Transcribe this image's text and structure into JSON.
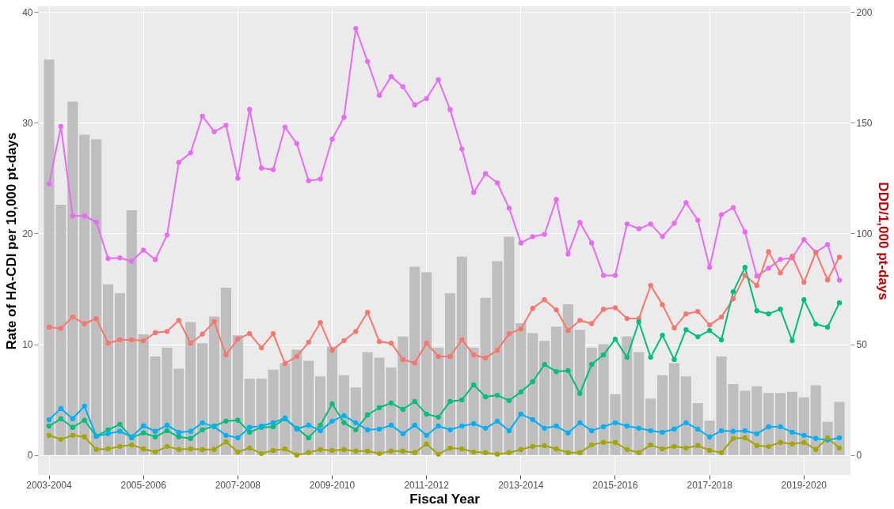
{
  "chart_data": {
    "type": "bar",
    "xlabel": "Fiscal Year",
    "ylabel": "Rate of HA-CDI per 10,000 pt-days",
    "y2label": "DDD/1,000 pt-days",
    "categories": [
      "2003-2004",
      null,
      null,
      null,
      null,
      null,
      null,
      null,
      "2005-2006",
      null,
      null,
      null,
      null,
      null,
      null,
      null,
      "2007-2008",
      null,
      null,
      null,
      null,
      null,
      null,
      null,
      "2009-2010",
      null,
      null,
      null,
      null,
      null,
      null,
      null,
      "2011-2012",
      null,
      null,
      null,
      null,
      null,
      null,
      null,
      "2013-2014",
      null,
      null,
      null,
      null,
      null,
      null,
      null,
      "2015-2016",
      null,
      null,
      null,
      null,
      null,
      null,
      null,
      "2017-2018",
      null,
      null,
      null,
      null,
      null,
      null,
      null,
      "2019-2020",
      null,
      null,
      null
    ],
    "ylim": [
      -1.8,
      40.5
    ],
    "yticks": [
      0,
      10,
      20,
      30,
      40
    ],
    "y2lim": [
      -9,
      202.5
    ],
    "y2ticks": [
      0,
      50,
      100,
      150,
      200
    ],
    "grid": true,
    "series": [
      {
        "color": "#bebebe",
        "values": [
          35.7,
          22.6,
          31.9,
          28.9,
          28.5,
          15.4,
          14.6,
          22.1,
          10.9,
          8.9,
          9.7,
          7.8,
          12.0,
          10.1,
          12.5,
          15.1,
          10.8,
          6.9,
          6.9,
          7.7,
          8.3,
          9.5,
          8.5,
          7.1,
          9.8,
          7.2,
          6.1,
          9.3,
          8.8,
          7.9,
          10.7,
          17.0,
          16.5,
          9.7,
          14.6,
          17.9,
          9.7,
          14.2,
          17.5,
          19.7,
          11.9,
          11.0,
          10.3,
          11.6,
          13.6,
          11.3,
          9.7,
          10.0,
          5.5,
          10.7,
          9.3,
          5.1,
          7.2,
          8.3,
          7.1,
          4.7,
          3.1,
          8.9,
          6.4,
          5.8,
          6.2,
          5.6,
          5.6,
          5.7,
          5.2,
          6.3,
          3.0,
          4.8
        ]
      },
      {
        "type": "line",
        "axis": "y2",
        "color": "#e76bf3",
        "marker": "circle",
        "line_style": "solid",
        "values": [
          122.4,
          148.3,
          107.9,
          107.9,
          105.2,
          88.7,
          89.0,
          87.5,
          92.5,
          88.2,
          99.3,
          132.1,
          136.4,
          153.0,
          145.9,
          148.8,
          124.9,
          156.0,
          129.5,
          128.8,
          148.0,
          140.6,
          123.8,
          124.6,
          142.6,
          152.4,
          192.5,
          177.6,
          162.3,
          170.8,
          166.2,
          158.0,
          160.9,
          169.4,
          155.9,
          138.1,
          118.5,
          127.0,
          122.8,
          111.4,
          95.7,
          98.6,
          99.6,
          115.3,
          90.7,
          105.0,
          95.7,
          81.1,
          81.1,
          104.3,
          102.1,
          104.3,
          98.6,
          104.6,
          113.9,
          106.0,
          84.7,
          108.5,
          111.7,
          100.7,
          80.8,
          84.3,
          88.3,
          89.0,
          97.2,
          91.5,
          95.0,
          78.9
        ]
      },
      {
        "type": "line",
        "axis": "y2",
        "color": "#f8766d",
        "marker": "circle",
        "line_style": "solid",
        "values": [
          57.7,
          57.2,
          62.3,
          59.3,
          61.6,
          50.5,
          52.0,
          52.0,
          51.6,
          55.2,
          55.8,
          60.8,
          50.5,
          54.6,
          60.2,
          45.2,
          52.4,
          54.8,
          48.4,
          54.8,
          41.3,
          44.5,
          50.9,
          59.8,
          47.3,
          51.6,
          55.8,
          64.4,
          51.2,
          50.5,
          43.1,
          41.6,
          50.5,
          44.5,
          44.5,
          52.0,
          45.2,
          43.8,
          47.3,
          54.8,
          56.9,
          66.2,
          70.1,
          65.5,
          56.2,
          60.8,
          59.3,
          65.8,
          66.5,
          61.6,
          61.6,
          76.5,
          67.9,
          57.3,
          63.7,
          64.8,
          58.7,
          62.3,
          70.5,
          81.1,
          76.5,
          91.8,
          82.2,
          89.7,
          77.9,
          91.5,
          79.0,
          89.3
        ]
      },
      {
        "type": "line",
        "axis": "y2",
        "color": "#00bf7d",
        "marker": "circle",
        "line_style": "solid",
        "values": [
          13.1,
          16.4,
          12.5,
          15.7,
          8.5,
          11.4,
          13.9,
          7.8,
          10.0,
          8.2,
          11.0,
          8.2,
          7.5,
          11.4,
          13.1,
          15.3,
          15.7,
          10.3,
          12.5,
          12.8,
          16.4,
          12.1,
          7.8,
          13.5,
          23.1,
          14.6,
          11.4,
          18.1,
          21.4,
          23.5,
          20.6,
          24.2,
          18.5,
          17.1,
          24.2,
          24.9,
          31.7,
          26.3,
          27.0,
          24.6,
          28.5,
          33.1,
          40.9,
          37.7,
          38.1,
          27.8,
          40.9,
          45.2,
          52.3,
          44.1,
          60.1,
          44.1,
          54.1,
          43.1,
          56.6,
          53.4,
          56.2,
          52.0,
          73.7,
          84.7,
          65.1,
          63.7,
          65.8,
          51.6,
          70.1,
          59.1,
          57.7,
          68.7
        ]
      },
      {
        "type": "line",
        "axis": "y2",
        "color": "#00b0f6",
        "marker": "circle",
        "line_style": "solid",
        "values": [
          16.0,
          21.0,
          16.4,
          22.1,
          8.5,
          9.6,
          10.7,
          8.2,
          13.2,
          10.7,
          13.5,
          10.3,
          10.7,
          14.6,
          12.8,
          8.9,
          7.8,
          12.5,
          13.1,
          14.6,
          16.7,
          11.7,
          13.5,
          11.0,
          15.3,
          17.8,
          14.6,
          11.4,
          11.7,
          13.5,
          9.6,
          13.5,
          8.9,
          13.1,
          11.4,
          13.1,
          14.2,
          12.1,
          15.3,
          11.0,
          18.5,
          16.0,
          12.1,
          13.1,
          10.0,
          14.6,
          11.0,
          12.8,
          14.6,
          13.1,
          12.1,
          11.0,
          10.3,
          11.7,
          14.6,
          11.7,
          8.2,
          11.0,
          10.7,
          11.0,
          9.6,
          12.8,
          12.8,
          10.3,
          8.9,
          7.5,
          6.8,
          7.8
        ]
      },
      {
        "type": "line",
        "axis": "y2",
        "color": "#a3a500",
        "marker": "circle",
        "line_style": "solid",
        "values": [
          8.9,
          7.1,
          8.9,
          8.2,
          2.5,
          2.8,
          3.9,
          4.6,
          2.8,
          1.4,
          3.9,
          2.5,
          2.8,
          2.5,
          2.5,
          6.0,
          1.4,
          3.2,
          0.7,
          2.1,
          2.8,
          0,
          1.1,
          2.5,
          2.1,
          2.5,
          1.8,
          1.8,
          0.7,
          1.8,
          1.8,
          1.1,
          5.0,
          0.4,
          3.2,
          2.8,
          1.4,
          1.1,
          0.4,
          1.1,
          2.5,
          3.9,
          4.3,
          2.8,
          1.1,
          1.1,
          4.6,
          5.7,
          5.7,
          2.5,
          1.1,
          4.6,
          2.8,
          3.9,
          3.2,
          4.3,
          2.1,
          1.1,
          7.5,
          7.8,
          4.3,
          3.9,
          5.7,
          5.0,
          5.7,
          2.5,
          7.8,
          3.2
        ]
      }
    ]
  }
}
